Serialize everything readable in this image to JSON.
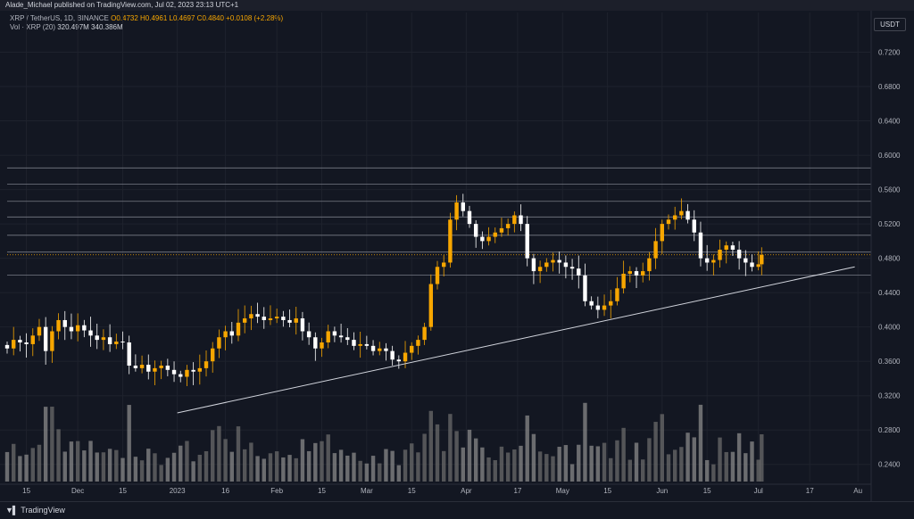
{
  "header": {
    "publisher": "Alade_Michael published on TradingView.com, Jul 02, 2023 23:13 UTC+1"
  },
  "legend": {
    "symbol": "XRP / TetherUS, 1D, BINANCE",
    "open": "O0.4732",
    "high": "H0.4961",
    "low": "L0.4697",
    "close": "C0.4840",
    "change": "+0.0108 (+2.28%)",
    "vol_label": "Vol · XRP (20)",
    "vol_value": "320.497M",
    "vol_ma": "340.386M"
  },
  "currency": "USDT",
  "footer": {
    "brand": "TradingView",
    "logo_icon": "tradingview-logo-icon"
  },
  "colors": {
    "background": "#131722",
    "up": "#f7a600",
    "down": "#ffffff",
    "grid": "#1e222d",
    "level_line": "#787b86",
    "trendline": "#d1d4dc",
    "price_label": "#fff3e0",
    "current_price": "#f7a600"
  },
  "chart_data": {
    "type": "candlestick",
    "symbol": "XRP / TetherUS",
    "interval": "1D",
    "exchange": "BINANCE",
    "y_axis": {
      "ticks": [
        "0.2400",
        "0.2800",
        "0.3200",
        "0.3600",
        "0.4000",
        "0.4400",
        "0.4800",
        "0.5200",
        "0.5600",
        "0.6000",
        "0.6400",
        "0.6800",
        "0.7200"
      ],
      "range": [
        0.22,
        0.76
      ]
    },
    "x_axis": {
      "ticks": [
        "15",
        "Dec",
        "15",
        "2023",
        "16",
        "Feb",
        "15",
        "Mar",
        "15",
        "Apr",
        "17",
        "May",
        "15",
        "Jun",
        "15",
        "Jul",
        "17",
        "Au"
      ],
      "tick_dates": [
        "2022-11-15",
        "2022-12-01",
        "2022-12-15",
        "2023-01-01",
        "2023-01-16",
        "2023-02-01",
        "2023-02-15",
        "2023-03-01",
        "2023-03-15",
        "2023-04-01",
        "2023-04-17",
        "2023-05-01",
        "2023-05-15",
        "2023-06-01",
        "2023-06-15",
        "2023-07-01",
        "2023-07-17",
        "2023-08-01"
      ],
      "range": [
        "2022-11-09",
        "2023-08-04"
      ]
    },
    "horizontal_levels": [
      "0.5852",
      "0.5662",
      "0.5463",
      "0.5281",
      "0.5068",
      "0.4872",
      "0.4605"
    ],
    "current_price": {
      "value": "0.4840",
      "countdown": "01:46:48"
    },
    "trendline": {
      "start": [
        "2023-01-01",
        0.3
      ],
      "end": [
        "2023-07-31",
        0.47
      ]
    },
    "closes": [
      [
        "2022-11-09",
        0.375
      ],
      [
        "2022-11-11",
        0.385
      ],
      [
        "2022-11-13",
        0.382
      ],
      [
        "2022-11-15",
        0.38
      ],
      [
        "2022-11-17",
        0.39
      ],
      [
        "2022-11-19",
        0.4
      ],
      [
        "2022-11-21",
        0.372
      ],
      [
        "2022-11-23",
        0.395
      ],
      [
        "2022-11-25",
        0.408
      ],
      [
        "2022-11-27",
        0.4
      ],
      [
        "2022-11-29",
        0.395
      ],
      [
        "2022-12-01",
        0.402
      ],
      [
        "2022-12-03",
        0.396
      ],
      [
        "2022-12-05",
        0.39
      ],
      [
        "2022-12-07",
        0.385
      ],
      [
        "2022-12-09",
        0.388
      ],
      [
        "2022-12-11",
        0.38
      ],
      [
        "2022-12-13",
        0.383
      ],
      [
        "2022-12-15",
        0.382
      ],
      [
        "2022-12-17",
        0.355
      ],
      [
        "2022-12-19",
        0.352
      ],
      [
        "2022-12-21",
        0.356
      ],
      [
        "2022-12-23",
        0.348
      ],
      [
        "2022-12-25",
        0.352
      ],
      [
        "2022-12-27",
        0.355
      ],
      [
        "2022-12-29",
        0.35
      ],
      [
        "2022-12-31",
        0.345
      ],
      [
        "2023-01-02",
        0.342
      ],
      [
        "2023-01-04",
        0.35
      ],
      [
        "2023-01-06",
        0.348
      ],
      [
        "2023-01-08",
        0.352
      ],
      [
        "2023-01-10",
        0.36
      ],
      [
        "2023-01-12",
        0.375
      ],
      [
        "2023-01-14",
        0.388
      ],
      [
        "2023-01-16",
        0.395
      ],
      [
        "2023-01-18",
        0.39
      ],
      [
        "2023-01-20",
        0.405
      ],
      [
        "2023-01-22",
        0.41
      ],
      [
        "2023-01-24",
        0.415
      ],
      [
        "2023-01-26",
        0.412
      ],
      [
        "2023-01-28",
        0.408
      ],
      [
        "2023-01-30",
        0.41
      ],
      [
        "2023-02-01",
        0.412
      ],
      [
        "2023-02-03",
        0.408
      ],
      [
        "2023-02-05",
        0.405
      ],
      [
        "2023-02-07",
        0.41
      ],
      [
        "2023-02-09",
        0.395
      ],
      [
        "2023-02-11",
        0.388
      ],
      [
        "2023-02-13",
        0.375
      ],
      [
        "2023-02-15",
        0.382
      ],
      [
        "2023-02-17",
        0.395
      ],
      [
        "2023-02-19",
        0.39
      ],
      [
        "2023-02-21",
        0.388
      ],
      [
        "2023-02-23",
        0.385
      ],
      [
        "2023-02-25",
        0.378
      ],
      [
        "2023-02-27",
        0.38
      ],
      [
        "2023-03-01",
        0.378
      ],
      [
        "2023-03-03",
        0.372
      ],
      [
        "2023-03-05",
        0.375
      ],
      [
        "2023-03-07",
        0.372
      ],
      [
        "2023-03-09",
        0.362
      ],
      [
        "2023-03-11",
        0.36
      ],
      [
        "2023-03-13",
        0.37
      ],
      [
        "2023-03-15",
        0.378
      ],
      [
        "2023-03-17",
        0.385
      ],
      [
        "2023-03-19",
        0.4
      ],
      [
        "2023-03-21",
        0.45
      ],
      [
        "2023-03-23",
        0.47
      ],
      [
        "2023-03-25",
        0.475
      ],
      [
        "2023-03-27",
        0.525
      ],
      [
        "2023-03-29",
        0.545
      ],
      [
        "2023-03-31",
        0.535
      ],
      [
        "2023-04-02",
        0.52
      ],
      [
        "2023-04-04",
        0.505
      ],
      [
        "2023-04-06",
        0.5
      ],
      [
        "2023-04-08",
        0.505
      ],
      [
        "2023-04-10",
        0.51
      ],
      [
        "2023-04-12",
        0.515
      ],
      [
        "2023-04-14",
        0.52
      ],
      [
        "2023-04-16",
        0.53
      ],
      [
        "2023-04-18",
        0.52
      ],
      [
        "2023-04-20",
        0.48
      ],
      [
        "2023-04-22",
        0.465
      ],
      [
        "2023-04-24",
        0.47
      ],
      [
        "2023-04-26",
        0.475
      ],
      [
        "2023-04-28",
        0.478
      ],
      [
        "2023-04-30",
        0.475
      ],
      [
        "2023-05-02",
        0.47
      ],
      [
        "2023-05-04",
        0.468
      ],
      [
        "2023-05-06",
        0.46
      ],
      [
        "2023-05-08",
        0.43
      ],
      [
        "2023-05-10",
        0.425
      ],
      [
        "2023-05-12",
        0.42
      ],
      [
        "2023-05-14",
        0.425
      ],
      [
        "2023-05-16",
        0.43
      ],
      [
        "2023-05-18",
        0.445
      ],
      [
        "2023-05-20",
        0.462
      ],
      [
        "2023-05-22",
        0.465
      ],
      [
        "2023-05-24",
        0.46
      ],
      [
        "2023-05-26",
        0.465
      ],
      [
        "2023-05-28",
        0.48
      ],
      [
        "2023-05-30",
        0.5
      ],
      [
        "2023-06-01",
        0.52
      ],
      [
        "2023-06-03",
        0.525
      ],
      [
        "2023-06-05",
        0.53
      ],
      [
        "2023-06-07",
        0.535
      ],
      [
        "2023-06-09",
        0.525
      ],
      [
        "2023-06-11",
        0.51
      ],
      [
        "2023-06-13",
        0.48
      ],
      [
        "2023-06-15",
        0.475
      ],
      [
        "2023-06-17",
        0.478
      ],
      [
        "2023-06-19",
        0.49
      ],
      [
        "2023-06-21",
        0.495
      ],
      [
        "2023-06-23",
        0.49
      ],
      [
        "2023-06-25",
        0.48
      ],
      [
        "2023-06-27",
        0.475
      ],
      [
        "2023-06-29",
        0.47
      ],
      [
        "2023-07-01",
        0.473
      ],
      [
        "2023-07-02",
        0.484
      ]
    ],
    "volume_ma_label": "340.386M"
  }
}
